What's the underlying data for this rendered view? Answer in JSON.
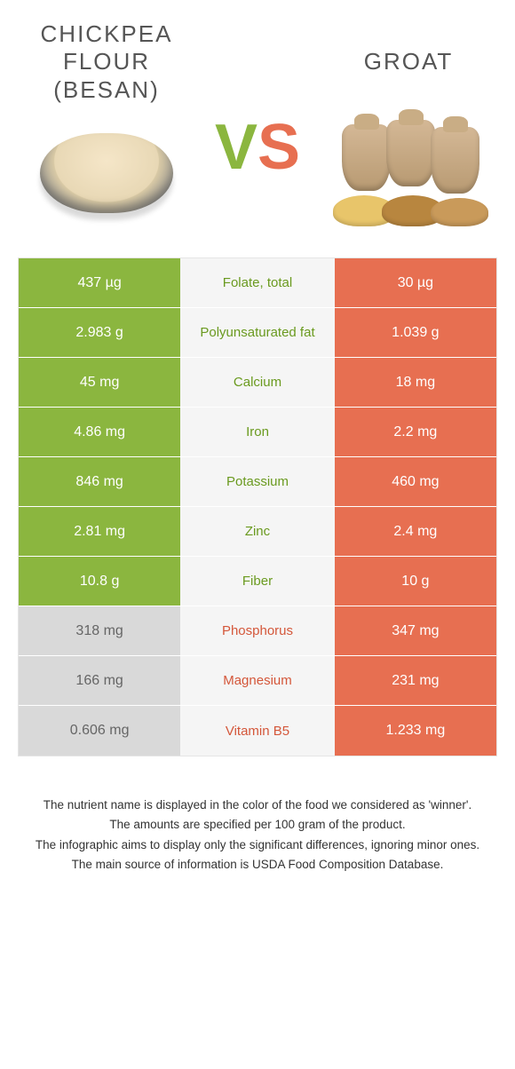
{
  "header": {
    "food_a": {
      "title_line1": "CHICKPEA",
      "title_line2": "FLOUR",
      "title_line3": "(BESAN)"
    },
    "food_b": {
      "title": "GROAT"
    },
    "vs_v": "V",
    "vs_s": "S"
  },
  "colors": {
    "green": "#8bb63f",
    "orange": "#e76f51",
    "grey_bg": "#d9d9d9",
    "mid_bg": "#f5f5f5",
    "label_green": "#6a9a1f",
    "label_orange": "#d4573a"
  },
  "rows": [
    {
      "left": "437 µg",
      "label": "Folate, total",
      "right": "30 µg",
      "winner": "a"
    },
    {
      "left": "2.983 g",
      "label": "Polyunsaturated fat",
      "right": "1.039 g",
      "winner": "a"
    },
    {
      "left": "45 mg",
      "label": "Calcium",
      "right": "18 mg",
      "winner": "a"
    },
    {
      "left": "4.86 mg",
      "label": "Iron",
      "right": "2.2 mg",
      "winner": "a"
    },
    {
      "left": "846 mg",
      "label": "Potassium",
      "right": "460 mg",
      "winner": "a"
    },
    {
      "left": "2.81 mg",
      "label": "Zinc",
      "right": "2.4 mg",
      "winner": "a"
    },
    {
      "left": "10.8 g",
      "label": "Fiber",
      "right": "10 g",
      "winner": "a"
    },
    {
      "left": "318 mg",
      "label": "Phosphorus",
      "right": "347 mg",
      "winner": "b"
    },
    {
      "left": "166 mg",
      "label": "Magnesium",
      "right": "231 mg",
      "winner": "b"
    },
    {
      "left": "0.606 mg",
      "label": "Vitamin B5",
      "right": "1.233 mg",
      "winner": "b"
    }
  ],
  "footer": {
    "l1": "The nutrient name is displayed in the color of the food we considered as 'winner'.",
    "l2": "The amounts are specified per 100 gram of the product.",
    "l3": "The infographic aims to display only the significant differences, ignoring minor ones.",
    "l4": "The main source of information is USDA Food Composition Database."
  }
}
